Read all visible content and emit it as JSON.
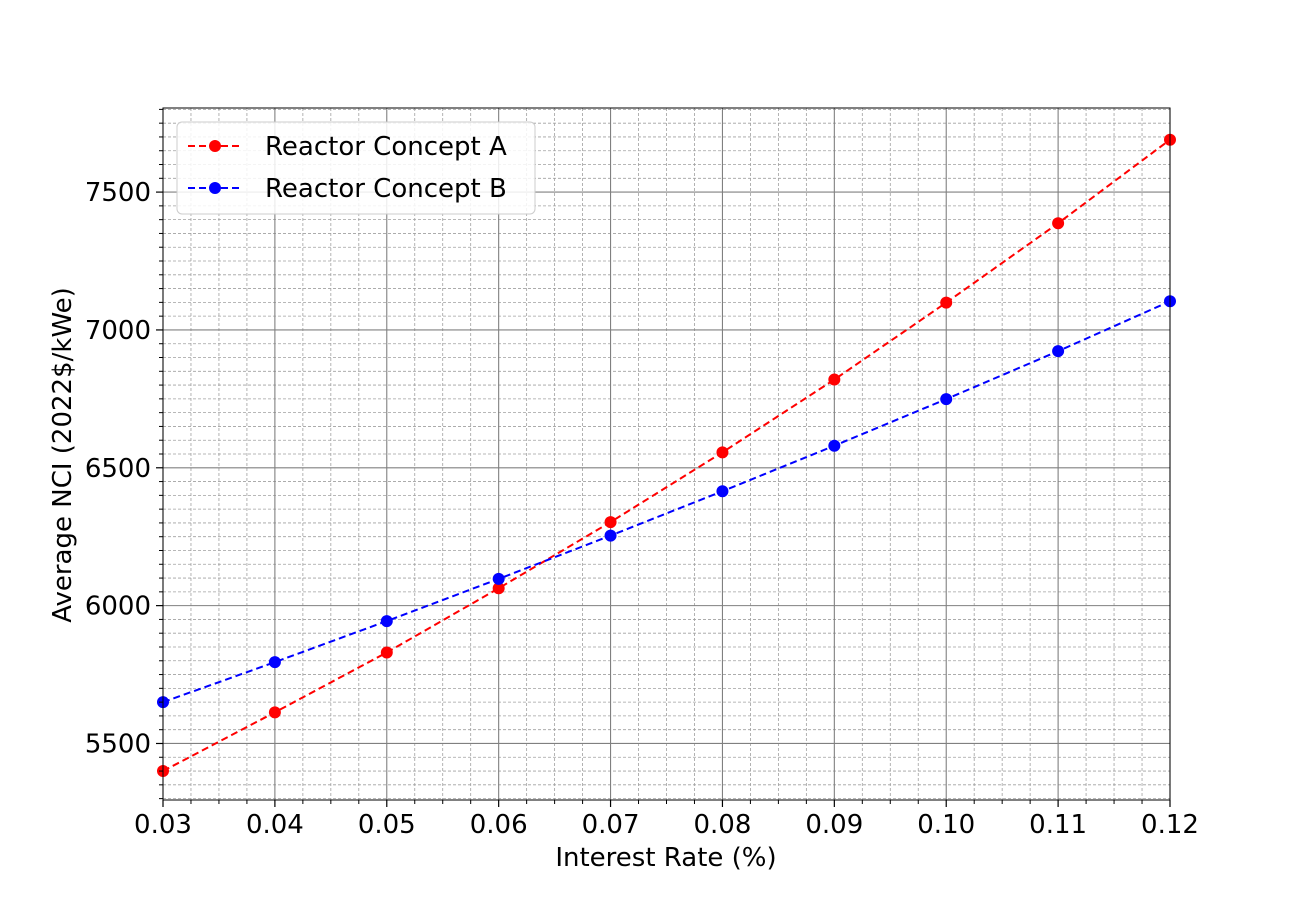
{
  "chart_data": {
    "type": "line",
    "title": "",
    "xlabel": "Interest Rate (%)",
    "ylabel": "Average NCI (2022$/kWe)",
    "xlim": [
      0.03,
      0.12
    ],
    "ylim": [
      5295,
      7805
    ],
    "x": [
      0.03,
      0.04,
      0.05,
      0.06,
      0.07,
      0.08,
      0.09,
      0.1,
      0.11,
      0.12
    ],
    "x_tick_labels": [
      "0.03",
      "0.04",
      "0.05",
      "0.06",
      "0.07",
      "0.08",
      "0.09",
      "0.10",
      "0.11",
      "0.12"
    ],
    "y_ticks": [
      5500,
      6000,
      6500,
      7000,
      7500
    ],
    "y_tick_labels": [
      "5500",
      "6000",
      "6500",
      "7000",
      "7500"
    ],
    "grid": true,
    "minor_grid": true,
    "legend_position": "top-left",
    "series": [
      {
        "name": "Reactor Concept A",
        "color": "#ff0000",
        "line_style": "dashed",
        "marker": "circle",
        "values": [
          5400,
          5613,
          5830,
          6063,
          6303,
          6556,
          6820,
          7099,
          7387,
          7690
        ]
      },
      {
        "name": "Reactor Concept B",
        "color": "#0000ff",
        "line_style": "dashed",
        "marker": "circle",
        "values": [
          5650,
          5795,
          5944,
          6097,
          6254,
          6415,
          6580,
          6749,
          6923,
          7104
        ]
      }
    ]
  }
}
